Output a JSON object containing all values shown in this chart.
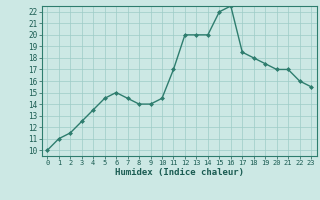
{
  "x": [
    0,
    1,
    2,
    3,
    4,
    5,
    6,
    7,
    8,
    9,
    10,
    11,
    12,
    13,
    14,
    15,
    16,
    17,
    18,
    19,
    20,
    21,
    22,
    23
  ],
  "y": [
    10,
    11,
    11.5,
    12.5,
    13.5,
    14.5,
    15,
    14.5,
    14,
    14,
    14.5,
    17,
    20,
    20,
    20,
    22,
    22.5,
    18.5,
    18,
    17.5,
    17,
    17,
    16,
    15.5
  ],
  "title": "",
  "xlabel": "Humidex (Indice chaleur)",
  "ylabel": "",
  "xlim": [
    -0.5,
    23.5
  ],
  "ylim": [
    9.5,
    22.5
  ],
  "yticks": [
    10,
    11,
    12,
    13,
    14,
    15,
    16,
    17,
    18,
    19,
    20,
    21,
    22
  ],
  "xticks": [
    0,
    1,
    2,
    3,
    4,
    5,
    6,
    7,
    8,
    9,
    10,
    11,
    12,
    13,
    14,
    15,
    16,
    17,
    18,
    19,
    20,
    21,
    22,
    23
  ],
  "line_color": "#2e7d6e",
  "marker_color": "#2e7d6e",
  "bg_color": "#cce8e4",
  "plot_bg_color": "#cce8e4",
  "grid_color": "#9dccc7",
  "axis_color": "#2e7d6e",
  "label_color": "#1a5c52"
}
